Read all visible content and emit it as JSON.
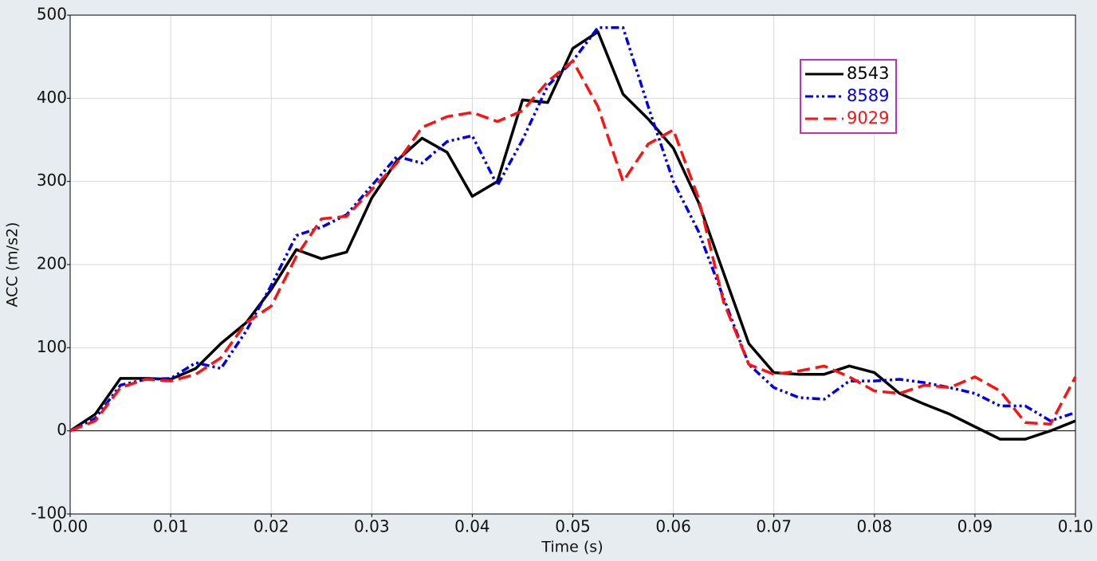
{
  "chart_data": {
    "type": "line",
    "xlabel": "Time (s)",
    "ylabel": "ACC (m/s2)",
    "x": [
      0,
      0.0025,
      0.005,
      0.0075,
      0.01,
      0.0125,
      0.015,
      0.0175,
      0.02,
      0.0225,
      0.025,
      0.0275,
      0.03,
      0.0325,
      0.035,
      0.0375,
      0.04,
      0.0425,
      0.045,
      0.0475,
      0.05,
      0.0525,
      0.055,
      0.0575,
      0.06,
      0.0625,
      0.065,
      0.0675,
      0.07,
      0.0725,
      0.075,
      0.0775,
      0.08,
      0.0825,
      0.085,
      0.0875,
      0.09,
      0.0925,
      0.095,
      0.0975,
      0.1
    ],
    "series": [
      {
        "name": "8543",
        "color": "#000000",
        "dash": "solid",
        "values": [
          0,
          20,
          63,
          63,
          62,
          75,
          105,
          130,
          170,
          218,
          207,
          215,
          280,
          325,
          352,
          335,
          282,
          300,
          398,
          395,
          460,
          480,
          405,
          375,
          340,
          275,
          190,
          105,
          70,
          68,
          68,
          78,
          70,
          45,
          32,
          20,
          5,
          -10,
          -10,
          0,
          12
        ]
      },
      {
        "name": "8589",
        "color": "#0000ee",
        "dash": "dash-dot-dot",
        "values": [
          0,
          15,
          55,
          62,
          63,
          82,
          75,
          120,
          175,
          235,
          245,
          260,
          295,
          330,
          322,
          348,
          355,
          295,
          350,
          415,
          445,
          485,
          485,
          390,
          300,
          240,
          160,
          80,
          52,
          40,
          38,
          60,
          60,
          62,
          58,
          52,
          45,
          30,
          30,
          12,
          22
        ]
      },
      {
        "name": "9029",
        "color": "#ff1111",
        "dash": "dashed",
        "values": [
          0,
          12,
          52,
          62,
          60,
          68,
          88,
          130,
          150,
          210,
          255,
          258,
          290,
          322,
          365,
          378,
          383,
          372,
          385,
          420,
          445,
          390,
          300,
          345,
          362,
          280,
          155,
          80,
          68,
          72,
          78,
          65,
          48,
          45,
          55,
          52,
          65,
          48,
          10,
          8,
          65
        ]
      }
    ],
    "xlim": [
      0,
      0.1
    ],
    "xticks": [
      {
        "value": 0,
        "label": "0.00"
      },
      {
        "value": 0.01,
        "label": "0.01"
      },
      {
        "value": 0.02,
        "label": "0.02"
      },
      {
        "value": 0.03,
        "label": "0.03"
      },
      {
        "value": 0.04,
        "label": "0.04"
      },
      {
        "value": 0.05,
        "label": "0.05"
      },
      {
        "value": 0.06,
        "label": "0.06"
      },
      {
        "value": 0.07,
        "label": "0.07"
      },
      {
        "value": 0.08,
        "label": "0.08"
      },
      {
        "value": 0.09,
        "label": "0.09"
      },
      {
        "value": 0.1,
        "label": "0.10"
      }
    ],
    "ylim": [
      -100,
      500
    ],
    "yticks": [
      -100,
      0,
      100,
      200,
      300,
      400,
      500
    ],
    "grid": true,
    "legend": "upper right",
    "legend_border_color": "#c030c0"
  }
}
